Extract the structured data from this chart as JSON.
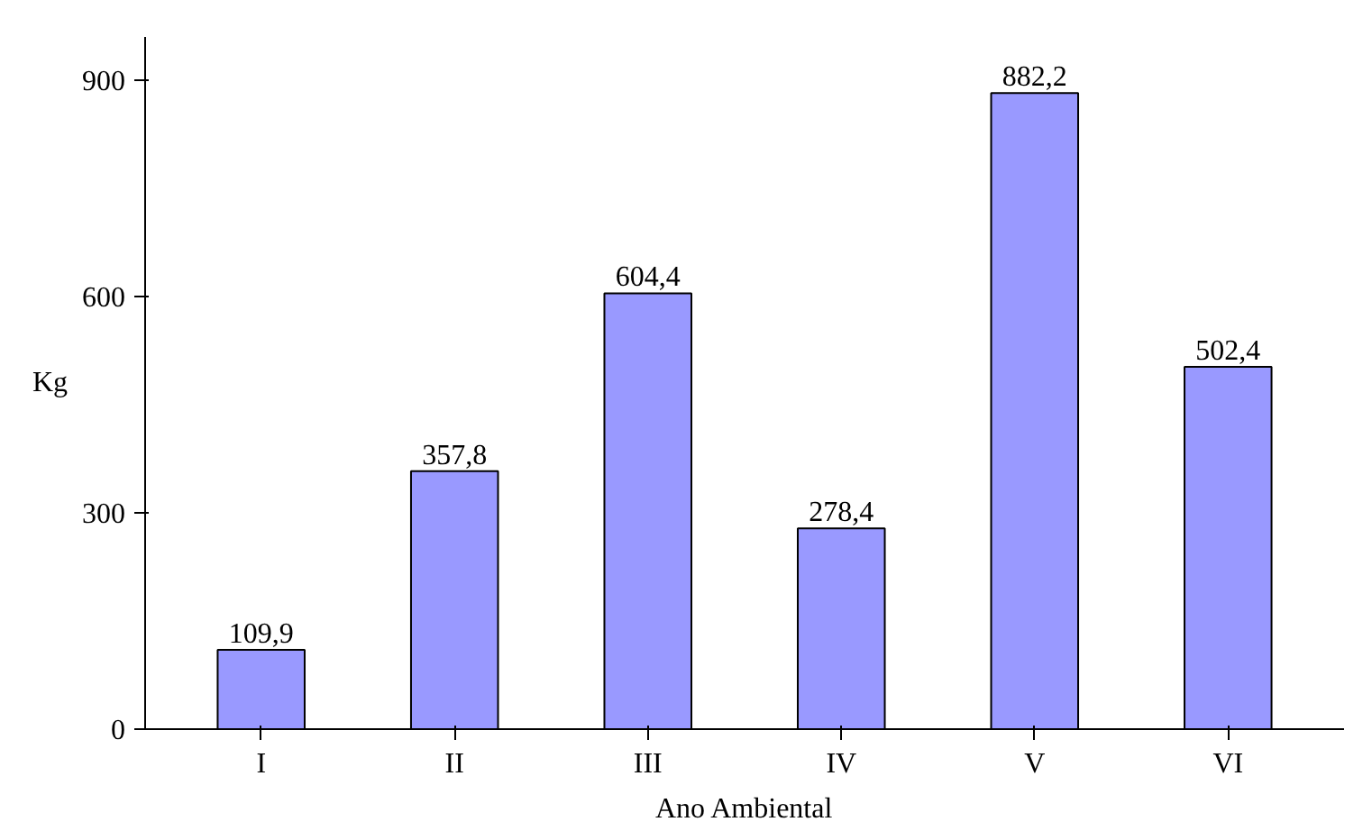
{
  "chart_data": {
    "type": "bar",
    "xlabel": "Ano Ambiental",
    "ylabel": "Kg",
    "categories": [
      "I",
      "II",
      "III",
      "IV",
      "V",
      "VI"
    ],
    "values": [
      109.9,
      357.8,
      604.4,
      278.4,
      882.2,
      502.4
    ],
    "value_labels": [
      "109,9",
      "357,8",
      "604,4",
      "278,4",
      "882,2",
      "502,4"
    ],
    "color": "#9999ff",
    "ylim": [
      0,
      960
    ],
    "yticks": [
      0,
      300,
      600,
      900
    ],
    "grid": false
  }
}
